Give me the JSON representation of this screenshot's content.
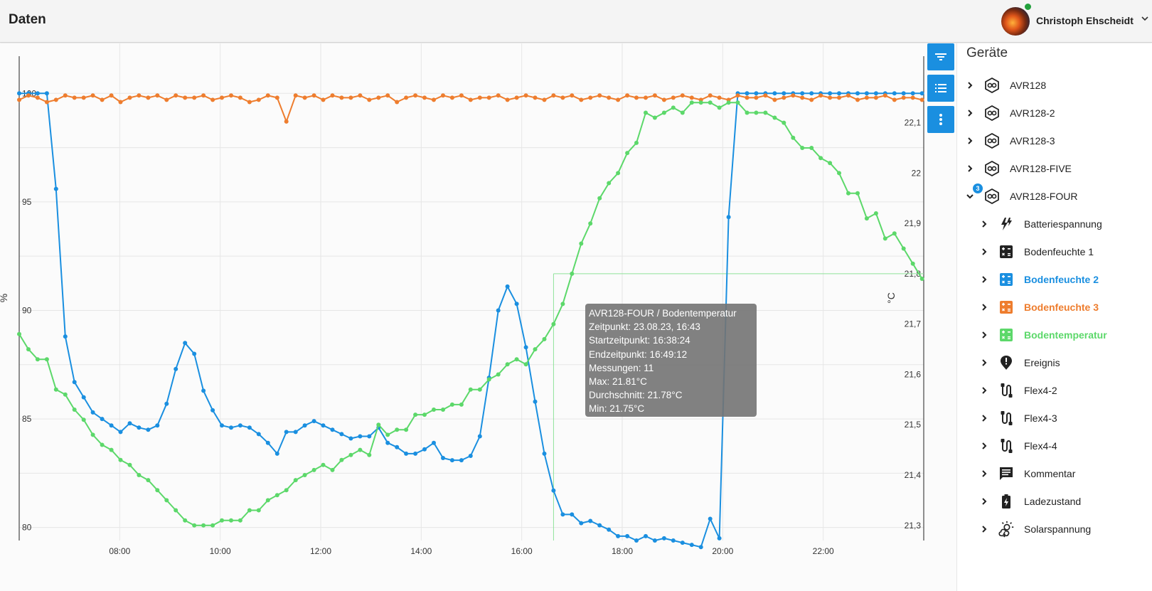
{
  "header": {
    "title": "Daten",
    "user_name": "Christoph Ehscheidt"
  },
  "colors": {
    "blue": "#1a8fe0",
    "orange": "#ee7d2e",
    "green": "#5cd86a",
    "tooltip_bg": "#747474"
  },
  "toolbar": {
    "icons": [
      "filter-icon",
      "list-icon",
      "more-vert-icon"
    ]
  },
  "chart_data": {
    "type": "line",
    "ylabel_left": "%",
    "ylabel_right": "°C",
    "x_ticks": [
      "08:00",
      "10:00",
      "12:00",
      "14:00",
      "16:00",
      "18:00",
      "20:00",
      "22:00"
    ],
    "x_range": [
      "06:00",
      "24:00"
    ],
    "y_left_ticks": [
      "80",
      "85",
      "90",
      "95",
      "100"
    ],
    "y_left_range": [
      79.4,
      100.5
    ],
    "y_right_ticks": [
      "21,3",
      "21,4",
      "21,5",
      "21,6",
      "21,7",
      "21,8",
      "21,9",
      "22",
      "22,1"
    ],
    "y_right_range": [
      21.27,
      22.18
    ],
    "grid": true,
    "crosshair": {
      "x": "16:38",
      "y": 21.8
    },
    "series": [
      {
        "color": "#1a8fe0",
        "axis": "left",
        "x": [
          "06:00",
          "06:11",
          "06:22",
          "06:33",
          "06:44",
          "06:55",
          "07:06",
          "07:17",
          "07:28",
          "07:39",
          "07:50",
          "08:01",
          "08:12",
          "08:23",
          "08:34",
          "08:45",
          "08:56",
          "09:07",
          "09:18",
          "09:29",
          "09:40",
          "09:51",
          "10:02",
          "10:13",
          "10:24",
          "10:35",
          "10:46",
          "10:57",
          "11:08",
          "11:19",
          "11:30",
          "11:41",
          "11:52",
          "12:03",
          "12:14",
          "12:25",
          "12:36",
          "12:47",
          "12:58",
          "13:09",
          "13:20",
          "13:31",
          "13:42",
          "13:53",
          "14:04",
          "14:15",
          "14:26",
          "14:37",
          "14:48",
          "14:59",
          "15:10",
          "15:21",
          "15:32",
          "15:43",
          "15:54",
          "16:05",
          "16:16",
          "16:27",
          "16:38",
          "16:49",
          "17:00",
          "17:11",
          "17:22",
          "17:33",
          "17:44",
          "17:55",
          "18:06",
          "18:17",
          "18:28",
          "18:39",
          "18:50",
          "19:01",
          "19:12",
          "19:23",
          "19:34",
          "19:45",
          "19:56",
          "20:07",
          "20:18",
          "20:29",
          "20:40",
          "20:51",
          "21:02",
          "21:13",
          "21:24",
          "21:35",
          "21:46",
          "21:57",
          "22:08",
          "22:19",
          "22:30",
          "22:41",
          "22:52",
          "23:03",
          "23:14",
          "23:25",
          "23:36",
          "23:47",
          "23:58"
        ],
        "y": [
          100.0,
          100.0,
          100.0,
          100.0,
          95.6,
          88.8,
          86.7,
          86.0,
          85.3,
          85.0,
          84.7,
          84.4,
          84.8,
          84.6,
          84.5,
          84.7,
          85.7,
          87.3,
          88.5,
          88.0,
          86.3,
          85.4,
          84.7,
          84.6,
          84.7,
          84.6,
          84.3,
          83.9,
          83.4,
          84.4,
          84.4,
          84.7,
          84.9,
          84.7,
          84.5,
          84.3,
          84.1,
          84.2,
          84.2,
          84.6,
          83.9,
          83.7,
          83.4,
          83.4,
          83.6,
          83.9,
          83.2,
          83.1,
          83.1,
          83.3,
          84.2,
          86.9,
          90.0,
          91.1,
          90.3,
          88.3,
          85.8,
          83.4,
          81.7,
          80.6,
          80.6,
          80.2,
          80.3,
          80.1,
          79.9,
          79.6,
          79.6,
          79.4,
          79.6,
          79.4,
          79.5,
          79.4,
          79.3,
          79.2,
          79.1,
          80.4,
          79.5,
          94.3,
          100.0,
          100.0,
          100.0,
          100.0,
          100.0,
          100.0,
          100.0,
          100.0,
          100.0,
          100.0,
          100.0,
          100.0,
          100.0,
          100.0,
          100.0,
          100.0,
          100.0,
          100.0,
          100.0,
          100.0,
          100.0
        ]
      },
      {
        "color": "#ee7d2e",
        "axis": "left",
        "x": [
          "06:00",
          "06:11",
          "06:22",
          "06:33",
          "06:44",
          "06:55",
          "07:06",
          "07:17",
          "07:28",
          "07:39",
          "07:50",
          "08:01",
          "08:12",
          "08:23",
          "08:34",
          "08:45",
          "08:56",
          "09:07",
          "09:18",
          "09:29",
          "09:40",
          "09:51",
          "10:02",
          "10:13",
          "10:24",
          "10:35",
          "10:46",
          "10:57",
          "11:08",
          "11:19",
          "11:30",
          "11:41",
          "11:52",
          "12:03",
          "12:14",
          "12:25",
          "12:36",
          "12:47",
          "12:58",
          "13:09",
          "13:20",
          "13:31",
          "13:42",
          "13:53",
          "14:04",
          "14:15",
          "14:26",
          "14:37",
          "14:48",
          "14:59",
          "15:10",
          "15:21",
          "15:32",
          "15:43",
          "15:54",
          "16:05",
          "16:16",
          "16:27",
          "16:38",
          "16:49",
          "17:00",
          "17:11",
          "17:22",
          "17:33",
          "17:44",
          "17:55",
          "18:06",
          "18:17",
          "18:28",
          "18:39",
          "18:50",
          "19:01",
          "19:12",
          "19:23",
          "19:34",
          "19:45",
          "19:56",
          "20:07",
          "20:18",
          "20:29",
          "20:40",
          "20:51",
          "21:02",
          "21:13",
          "21:24",
          "21:35",
          "21:46",
          "21:57",
          "22:08",
          "22:19",
          "22:30",
          "22:41",
          "22:52",
          "23:03",
          "23:14",
          "23:25",
          "23:36",
          "23:47",
          "23:58"
        ],
        "y": [
          99.7,
          99.9,
          99.8,
          99.6,
          99.7,
          99.9,
          99.8,
          99.8,
          99.9,
          99.7,
          99.9,
          99.6,
          99.8,
          99.9,
          99.8,
          99.9,
          99.7,
          99.9,
          99.8,
          99.8,
          99.9,
          99.7,
          99.8,
          99.9,
          99.8,
          99.6,
          99.7,
          99.9,
          99.8,
          98.7,
          99.9,
          99.8,
          99.9,
          99.7,
          99.9,
          99.8,
          99.8,
          99.9,
          99.7,
          99.8,
          99.9,
          99.6,
          99.8,
          99.9,
          99.8,
          99.7,
          99.9,
          99.8,
          99.9,
          99.7,
          99.8,
          99.8,
          99.9,
          99.7,
          99.8,
          99.9,
          99.8,
          99.7,
          99.9,
          99.8,
          99.9,
          99.7,
          99.8,
          99.9,
          99.8,
          99.7,
          99.9,
          99.8,
          99.8,
          99.9,
          99.7,
          99.8,
          99.9,
          99.8,
          99.7,
          99.9,
          99.8,
          99.7,
          99.9,
          99.8,
          99.8,
          99.9,
          99.7,
          99.8,
          99.9,
          99.8,
          99.7,
          99.9,
          99.8,
          99.8,
          99.9,
          99.7,
          99.8,
          99.8,
          99.9,
          99.7,
          99.8,
          99.8,
          99.7
        ]
      },
      {
        "color": "#5cd86a",
        "axis": "right",
        "x": [
          "06:00",
          "06:11",
          "06:22",
          "06:33",
          "06:44",
          "06:55",
          "07:06",
          "07:17",
          "07:28",
          "07:39",
          "07:50",
          "08:01",
          "08:12",
          "08:23",
          "08:34",
          "08:45",
          "08:56",
          "09:07",
          "09:18",
          "09:29",
          "09:40",
          "09:51",
          "10:02",
          "10:13",
          "10:24",
          "10:35",
          "10:46",
          "10:57",
          "11:08",
          "11:19",
          "11:30",
          "11:41",
          "11:52",
          "12:03",
          "12:14",
          "12:25",
          "12:36",
          "12:47",
          "12:58",
          "13:09",
          "13:20",
          "13:31",
          "13:42",
          "13:53",
          "14:04",
          "14:15",
          "14:26",
          "14:37",
          "14:48",
          "14:59",
          "15:10",
          "15:21",
          "15:32",
          "15:43",
          "15:54",
          "16:05",
          "16:16",
          "16:27",
          "16:38",
          "16:49",
          "17:00",
          "17:11",
          "17:22",
          "17:33",
          "17:44",
          "17:55",
          "18:06",
          "18:17",
          "18:28",
          "18:39",
          "18:50",
          "19:01",
          "19:12",
          "19:23",
          "19:34",
          "19:45",
          "19:56",
          "20:07",
          "20:18",
          "20:29",
          "20:40",
          "20:51",
          "21:02",
          "21:13",
          "21:24",
          "21:35",
          "21:46",
          "21:57",
          "22:08",
          "22:19",
          "22:30",
          "22:41",
          "22:52",
          "23:03",
          "23:14",
          "23:25",
          "23:36",
          "23:47",
          "23:58"
        ],
        "y": [
          21.68,
          21.65,
          21.63,
          21.63,
          21.57,
          21.56,
          21.53,
          21.51,
          21.48,
          21.46,
          21.45,
          21.43,
          21.42,
          21.4,
          21.39,
          21.37,
          21.35,
          21.33,
          21.31,
          21.3,
          21.3,
          21.3,
          21.31,
          21.31,
          21.31,
          21.33,
          21.33,
          21.35,
          21.36,
          21.37,
          21.39,
          21.4,
          21.41,
          21.42,
          21.41,
          21.43,
          21.44,
          21.45,
          21.44,
          21.5,
          21.48,
          21.49,
          21.49,
          21.52,
          21.52,
          21.53,
          21.53,
          21.54,
          21.54,
          21.57,
          21.57,
          21.59,
          21.6,
          21.62,
          21.63,
          21.62,
          21.65,
          21.67,
          21.7,
          21.74,
          21.8,
          21.86,
          21.9,
          21.95,
          21.98,
          22.0,
          22.04,
          22.06,
          22.12,
          22.11,
          22.12,
          22.13,
          22.12,
          22.14,
          22.14,
          22.14,
          22.13,
          22.14,
          22.14,
          22.12,
          22.12,
          22.12,
          22.11,
          22.1,
          22.07,
          22.05,
          22.05,
          22.03,
          22.02,
          22.0,
          21.96,
          21.96,
          21.91,
          21.92,
          21.87,
          21.88,
          21.85,
          21.82,
          21.79
        ]
      }
    ]
  },
  "tooltip": {
    "title": "AVR128-FOUR / Bodentemperatur",
    "zeitpunkt": "Zeitpunkt: 23.08.23, 16:43",
    "start": "Startzeitpunkt: 16:38:24",
    "end": "Endzeitpunkt: 16:49:12",
    "count": "Messungen: 11",
    "max": "Max: 21.81°C",
    "avg": "Durchschnitt: 21.78°C",
    "min": "Min: 21.75°C"
  },
  "sidebar": {
    "title": "Geräte",
    "devices": [
      {
        "name": "AVR128",
        "icon": "device-icon",
        "expanded": false
      },
      {
        "name": "AVR128-2",
        "icon": "device-icon",
        "expanded": false
      },
      {
        "name": "AVR128-3",
        "icon": "device-icon",
        "expanded": false
      },
      {
        "name": "AVR128-FIVE",
        "icon": "device-icon",
        "expanded": false
      },
      {
        "name": "AVR128-FOUR",
        "icon": "device-icon",
        "expanded": true,
        "badge": "3"
      }
    ],
    "sensors": [
      {
        "name": "Batteriespannung",
        "icon": "battery-voltage-icon",
        "color": "#222222"
      },
      {
        "name": "Bodenfeuchte 1",
        "icon": "calculator-icon",
        "color": "#222222"
      },
      {
        "name": "Bodenfeuchte 2",
        "icon": "calculator-icon",
        "color": "#1a8fe0",
        "active": true
      },
      {
        "name": "Bodenfeuchte 3",
        "icon": "calculator-icon",
        "color": "#ee7d2e",
        "active": true
      },
      {
        "name": "Bodentemperatur",
        "icon": "calculator-icon",
        "color": "#5cd86a",
        "active": true
      },
      {
        "name": "Ereignis",
        "icon": "alert-marker-icon",
        "color": "#222222"
      },
      {
        "name": "Flex4-2",
        "icon": "cable-icon",
        "color": "#222222"
      },
      {
        "name": "Flex4-3",
        "icon": "cable-icon",
        "color": "#222222"
      },
      {
        "name": "Flex4-4",
        "icon": "cable-icon",
        "color": "#222222"
      },
      {
        "name": "Kommentar",
        "icon": "comment-icon",
        "color": "#222222"
      },
      {
        "name": "Ladezustand",
        "icon": "battery-charging-icon",
        "color": "#222222"
      },
      {
        "name": "Solarspannung",
        "icon": "sun-cloud-icon",
        "color": "#222222"
      }
    ]
  }
}
